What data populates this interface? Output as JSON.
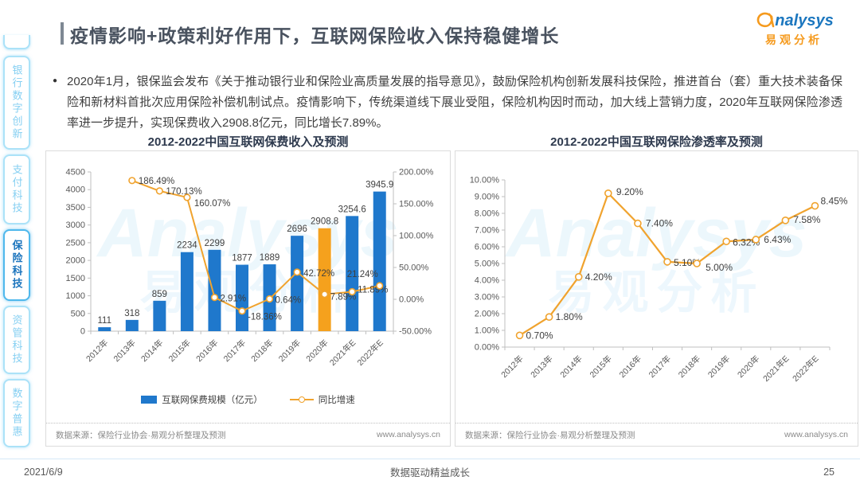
{
  "page": {
    "title": "疫情影响+政策利好作用下，互联网保险收入保持稳健增长",
    "logo": {
      "brand": "nalysys",
      "brand_cn": "易观分析"
    },
    "bullet_text": "2020年1月，银保监会发布《关于推动银行业和保险业高质量发展的指导意见》，鼓励保险机构创新发展科技保险，推进首台（套）重大技术装备保险和新材料首批次应用保险补偿机制试点。疫情影响下，传统渠道线下展业受阻，保险机构因时而动，加大线上营销力度，2020年互联网保险渗透率进一步提升，实现保费收入2908.8亿元，同比增长7.89%。",
    "watermark": {
      "line1": "Analysys",
      "line2": "易观分析"
    },
    "footer": {
      "date": "2021/6/9",
      "slogan": "数据驱动精益成长",
      "page_number": "25"
    }
  },
  "sidebar": {
    "items": [
      {
        "label": "银行数字创新",
        "active": false
      },
      {
        "label": "支付科技",
        "active": false
      },
      {
        "label": "保险科技",
        "active": true
      },
      {
        "label": "资管科技",
        "active": false
      },
      {
        "label": "数字普惠",
        "active": false
      }
    ]
  },
  "colors": {
    "bar_blue": "#1F78CC",
    "highlight_orange": "#F5A11D",
    "line_orange": "#F0A32E",
    "axis_text": "#595959",
    "data_label": "#3F3F3F",
    "axis_line": "#BFBFBF"
  },
  "chart_data": [
    {
      "type": "bar",
      "title": "2012-2022中国互联网保费收入及预测",
      "categories": [
        "2012年",
        "2013年",
        "2014年",
        "2015年",
        "2016年",
        "2017年",
        "2018年",
        "2019年",
        "2020年",
        "2021年E",
        "2022年E"
      ],
      "series": [
        {
          "name": "互联网保费规模（亿元）",
          "type": "bar",
          "axis": "left",
          "values": [
            111,
            318,
            859,
            2234,
            2299,
            1877,
            1889,
            2696,
            2908.8,
            3254.6,
            3945.9
          ],
          "labels": [
            "111",
            "318",
            "859",
            "2234",
            "2299",
            "1877",
            "1889",
            "2696",
            "2908.8",
            "3254.6",
            "3945.9"
          ],
          "highlight_index": 8
        },
        {
          "name": "同比增速",
          "type": "line",
          "axis": "right",
          "values": [
            null,
            186.49,
            170.13,
            160.07,
            2.91,
            -18.36,
            0.64,
            42.72,
            7.89,
            11.89,
            21.24
          ],
          "labels": [
            null,
            "186.49%",
            "170.13%",
            "160.07%",
            "2.91%",
            "-18.36%",
            "0.64%",
            "42.72%",
            "7.89%",
            "11.89%",
            "21.24%"
          ]
        }
      ],
      "left_axis": {
        "min": 0,
        "max": 4500,
        "step": 500
      },
      "right_axis": {
        "min": -50,
        "max": 200,
        "step": 50
      },
      "legend": [
        "互联网保费规模（亿元）",
        "同比增速"
      ],
      "legend_position": "bottom",
      "grid": false,
      "source": "数据来源：保险行业协会·易观分析整理及预测",
      "site": "www.analysys.cn"
    },
    {
      "type": "line",
      "title": "2012-2022中国互联网保险渗透率及预测",
      "categories": [
        "2012年",
        "2013年",
        "2014年",
        "2015年",
        "2016年",
        "2017年",
        "2018年",
        "2019年",
        "2020年",
        "2021年E",
        "2022年E"
      ],
      "series": [
        {
          "name": "互联网保险渗透率",
          "values": [
            0.7,
            1.8,
            4.2,
            9.2,
            7.4,
            5.1,
            5.0,
            6.32,
            6.43,
            7.58,
            8.45
          ],
          "labels": [
            "0.70%",
            "1.80%",
            "4.20%",
            "9.20%",
            "7.40%",
            "5.10%",
            "5.00%",
            "6.32%",
            "6.43%",
            "7.58%",
            "8.45%"
          ]
        }
      ],
      "y_axis": {
        "min": 0,
        "max": 10,
        "step": 1
      },
      "grid": false,
      "legend_position": "none",
      "source": "数据来源：保险行业协会·易观分析整理及预测",
      "site": "www.analysys.cn"
    }
  ]
}
